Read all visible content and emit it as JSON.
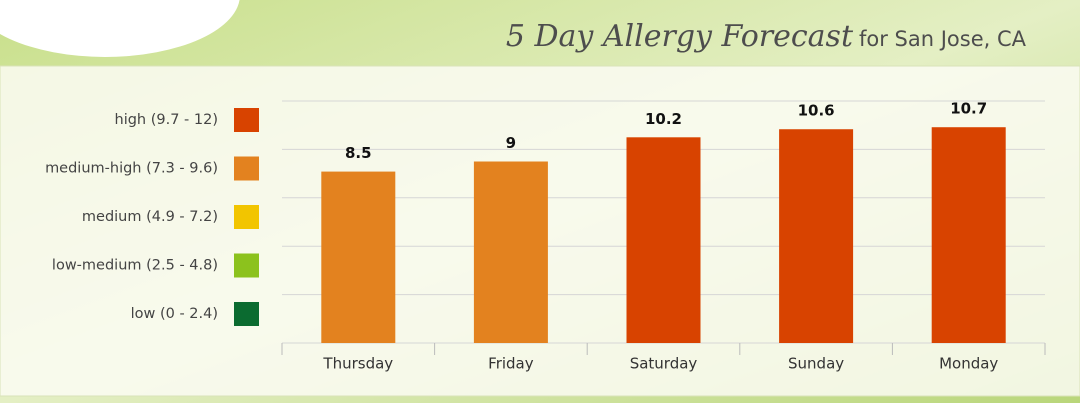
{
  "chart_data": {
    "type": "bar",
    "title": "5 Day Allergy Forecast",
    "subtitle": "for San Jose, CA",
    "categories": [
      "Thursday",
      "Friday",
      "Saturday",
      "Sunday",
      "Monday"
    ],
    "values": [
      8.5,
      9,
      10.2,
      10.6,
      10.7
    ],
    "colors": [
      "#e3821f",
      "#e3821f",
      "#d84300",
      "#d84300",
      "#d84300"
    ],
    "ylim": [
      0,
      12
    ],
    "yticks": [
      0,
      2.4,
      4.8,
      7.2,
      9.6,
      12
    ],
    "grid": true,
    "legend": [
      {
        "label": "high (9.7 - 12)",
        "color": "#d84300"
      },
      {
        "label": "medium-high (7.3 - 9.6)",
        "color": "#e3821f"
      },
      {
        "label": "medium (4.9 - 7.2)",
        "color": "#f2c500"
      },
      {
        "label": "low-medium (2.5 - 4.8)",
        "color": "#8cc21d"
      },
      {
        "label": "low (0 - 2.4)",
        "color": "#0b6b30"
      }
    ]
  }
}
